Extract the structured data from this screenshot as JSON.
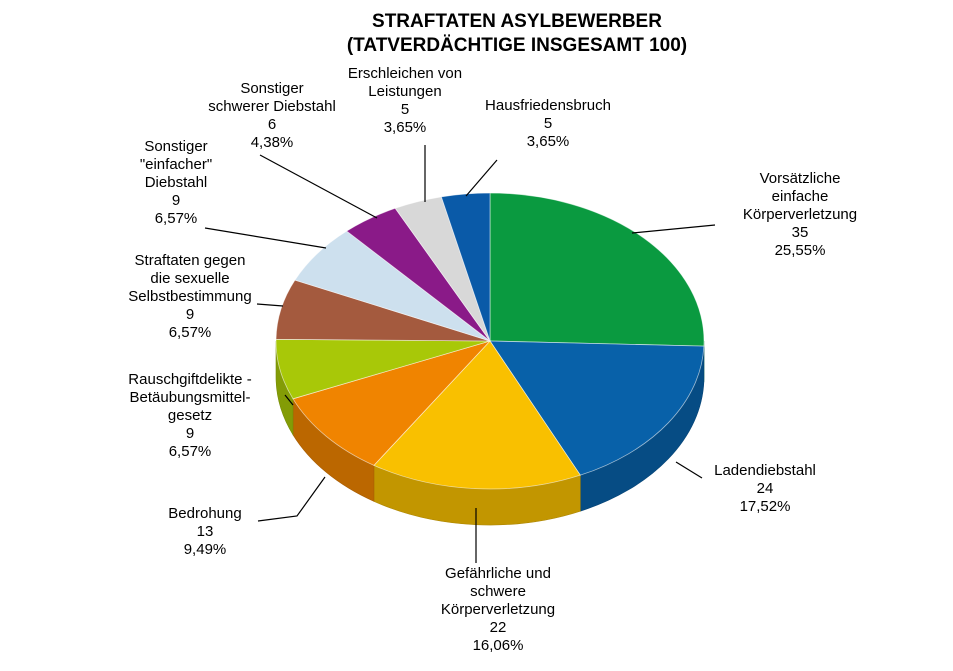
{
  "chart_data": {
    "type": "pie",
    "title_lines": [
      "STRAFTATEN ASYLBEWERBER",
      "(TATVERDÄCHTIGE INSGESAMT 100)"
    ],
    "slices": [
      {
        "label_lines": [
          "Vorsätzliche",
          "einfache",
          "Körperverletzung"
        ],
        "value": 35,
        "percent": "25,55%",
        "color": "#0a9a40"
      },
      {
        "label_lines": [
          "Ladendiebstahl"
        ],
        "value": 24,
        "percent": "17,52%",
        "color": "#0861a9"
      },
      {
        "label_lines": [
          "Gefährliche und",
          "schwere",
          "Körperverletzung"
        ],
        "value": 22,
        "percent": "16,06%",
        "color": "#f9c000"
      },
      {
        "label_lines": [
          "Bedrohung"
        ],
        "value": 13,
        "percent": "9,49%",
        "color": "#f08400"
      },
      {
        "label_lines": [
          "Rauschgiftdelikte -",
          "Betäubungsmittel-",
          "gesetz"
        ],
        "value": 9,
        "percent": "6,57%",
        "color": "#a8c808"
      },
      {
        "label_lines": [
          "Straftaten gegen",
          "die sexuelle",
          "Selbstbestimmung"
        ],
        "value": 9,
        "percent": "6,57%",
        "color": "#a45a3e"
      },
      {
        "label_lines": [
          "Sonstiger",
          "\"einfacher\"",
          "Diebstahl"
        ],
        "value": 9,
        "percent": "6,57%",
        "color": "#cde0ee"
      },
      {
        "label_lines": [
          "Sonstiger",
          "schwerer Diebstahl"
        ],
        "value": 6,
        "percent": "4,38%",
        "color": "#8a1a88"
      },
      {
        "label_lines": [
          "Erschleichen von",
          "Leistungen"
        ],
        "value": 5,
        "percent": "3,65%",
        "color": "#d8d8d8"
      },
      {
        "label_lines": [
          "Hausfriedensbruch"
        ],
        "value": 5,
        "percent": "3,65%",
        "color": "#0a5aa8"
      }
    ]
  }
}
